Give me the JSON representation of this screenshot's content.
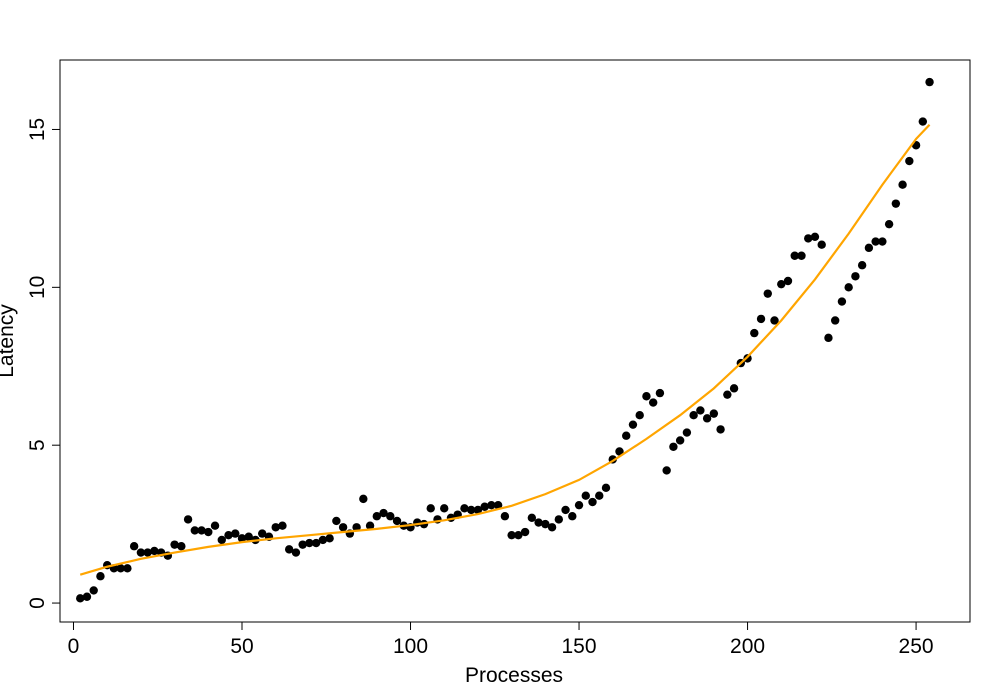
{
  "chart_data": {
    "type": "scatter",
    "title": "",
    "xlabel": "Processes",
    "ylabel": "Latency",
    "xlim": [
      -4,
      266
    ],
    "ylim": [
      -0.6,
      17.2
    ],
    "x_ticks": [
      0,
      50,
      100,
      150,
      200,
      250
    ],
    "y_ticks": [
      0,
      5,
      10,
      15
    ],
    "x_tick_labels": [
      "0",
      "50",
      "100",
      "150",
      "200",
      "250"
    ],
    "y_tick_labels": [
      "0",
      "5",
      "10",
      "15"
    ],
    "grid": false,
    "legend": "none",
    "point_color": "#000000",
    "fit_color": "#FFA500",
    "series": [
      {
        "kind": "points",
        "x": [
          2,
          4,
          6,
          8,
          10,
          12,
          14,
          16,
          18,
          20,
          22,
          24,
          26,
          28,
          30,
          32,
          34,
          36,
          38,
          40,
          42,
          44,
          46,
          48,
          50,
          52,
          54,
          56,
          58,
          60,
          62,
          64,
          66,
          68,
          70,
          72,
          74,
          76,
          78,
          80,
          82,
          84,
          86,
          88,
          90,
          92,
          94,
          96,
          98,
          100,
          102,
          104,
          106,
          108,
          110,
          112,
          114,
          116,
          118,
          120,
          122,
          124,
          126,
          128,
          130,
          132,
          134,
          136,
          138,
          140,
          142,
          144,
          146,
          148,
          150,
          152,
          154,
          156,
          158,
          160,
          162,
          164,
          166,
          168,
          170,
          172,
          174,
          176,
          178,
          180,
          182,
          184,
          186,
          188,
          190,
          192,
          194,
          196,
          198,
          200,
          202,
          204,
          206,
          208,
          210,
          212,
          214,
          216,
          218,
          220,
          222,
          224,
          226,
          228,
          230,
          232,
          234,
          236,
          238,
          240,
          242,
          244,
          246,
          248,
          250,
          252,
          254
        ],
        "y": [
          0.15,
          0.2,
          0.4,
          0.85,
          1.2,
          1.1,
          1.1,
          1.1,
          1.8,
          1.6,
          1.6,
          1.65,
          1.6,
          1.5,
          1.85,
          1.8,
          2.65,
          2.3,
          2.3,
          2.25,
          2.45,
          2.0,
          2.15,
          2.2,
          2.05,
          2.1,
          2.0,
          2.2,
          2.1,
          2.4,
          2.45,
          1.7,
          1.6,
          1.85,
          1.9,
          1.9,
          2.0,
          2.05,
          2.6,
          2.4,
          2.2,
          2.4,
          3.3,
          2.45,
          2.75,
          2.85,
          2.75,
          2.6,
          2.45,
          2.4,
          2.55,
          2.5,
          3.0,
          2.65,
          3.0,
          2.7,
          2.8,
          3.0,
          2.95,
          2.95,
          3.05,
          3.1,
          3.1,
          2.75,
          2.15,
          2.15,
          2.25,
          2.7,
          2.55,
          2.5,
          2.4,
          2.65,
          2.95,
          2.75,
          3.1,
          3.4,
          3.2,
          3.4,
          3.65,
          4.55,
          4.8,
          5.3,
          5.65,
          5.95,
          6.55,
          6.35,
          6.65,
          4.2,
          4.95,
          5.15,
          5.4,
          5.95,
          6.1,
          5.85,
          6.0,
          5.5,
          6.6,
          6.8,
          7.6,
          7.75,
          8.55,
          9.0,
          9.8,
          8.95,
          10.1,
          10.2,
          11.0,
          11.0,
          11.55,
          11.6,
          11.35,
          8.4,
          8.95,
          9.55,
          10.0,
          10.35,
          10.7,
          11.25,
          11.45,
          11.45,
          12.0,
          12.65,
          13.25,
          14.0,
          14.5,
          15.25,
          16.5
        ]
      },
      {
        "kind": "fit",
        "x": [
          2,
          10,
          20,
          30,
          40,
          50,
          60,
          70,
          80,
          90,
          100,
          110,
          120,
          130,
          140,
          150,
          160,
          170,
          180,
          190,
          200,
          210,
          220,
          230,
          240,
          250,
          254
        ],
        "y": [
          0.9,
          1.15,
          1.4,
          1.6,
          1.78,
          1.93,
          2.05,
          2.15,
          2.25,
          2.35,
          2.47,
          2.62,
          2.82,
          3.08,
          3.45,
          3.9,
          4.5,
          5.2,
          5.95,
          6.8,
          7.8,
          8.95,
          10.25,
          11.7,
          13.25,
          14.7,
          15.15
        ]
      }
    ]
  }
}
